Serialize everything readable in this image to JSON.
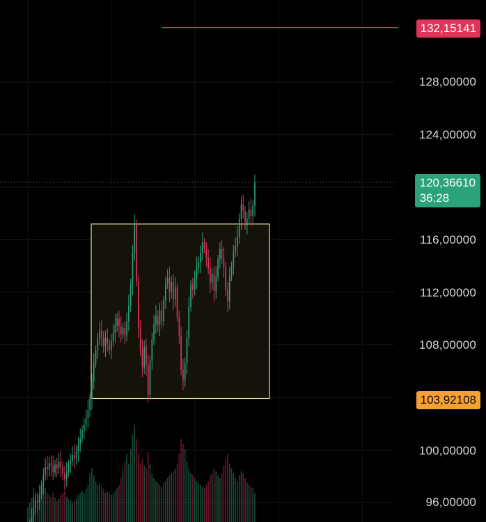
{
  "chart_data": {
    "type": "candlestick",
    "y_axis": {
      "ticks": [
        "128,00000",
        "124,00000",
        "116,00000",
        "112,00000",
        "108,00000",
        "100,00000",
        "96,00000"
      ],
      "tick_values": [
        128,
        124,
        116,
        112,
        108,
        100,
        96
      ],
      "position": "right"
    },
    "tags": {
      "resistance": "132,15141",
      "current_price": "120,36610",
      "countdown": "36:28",
      "support": "103,92108"
    },
    "levels": {
      "resistance": 132.15141,
      "current_price": 120.3661,
      "support": 103.92108
    },
    "range_box": {
      "low": 103.92108,
      "high": 117.2
    },
    "closes": [
      93.5,
      94.2,
      94.9,
      95.6,
      96.2,
      96.0,
      96.6,
      97.3,
      98.1,
      98.7,
      98.5,
      99.0,
      98.8,
      98.3,
      98.9,
      98.6,
      99.1,
      98.7,
      98.2,
      97.8,
      98.3,
      98.9,
      99.2,
      99.6,
      99.4,
      99.9,
      100.4,
      100.9,
      101.5,
      101.9,
      102.4,
      103.0,
      103.9,
      105.2,
      106.6,
      107.6,
      108.4,
      109.1,
      108.6,
      107.9,
      108.5,
      108.1,
      107.6,
      108.3,
      108.9,
      109.5,
      110.0,
      109.4,
      108.8,
      109.3,
      108.7,
      109.8,
      111.0,
      112.6,
      115.0,
      117.2,
      112.8,
      109.2,
      107.6,
      106.3,
      107.9,
      106.5,
      104.2,
      106.8,
      108.4,
      109.6,
      110.2,
      109.5,
      110.6,
      109.8,
      111.4,
      112.7,
      113.1,
      112.0,
      112.8,
      111.5,
      112.4,
      110.1,
      108.7,
      106.1,
      105.3,
      106.6,
      108.5,
      110.9,
      112.6,
      112.2,
      113.0,
      113.9,
      114.3,
      115.0,
      115.8,
      115.3,
      114.6,
      113.8,
      112.7,
      113.4,
      112.1,
      113.2,
      114.5,
      115.3,
      114.6,
      113.9,
      112.2,
      111.3,
      113.2,
      114.0,
      115.1,
      115.5,
      116.2,
      117.6,
      118.7,
      118.2,
      117.1,
      117.6,
      118.3,
      117.8,
      118.6,
      120.3661
    ],
    "volumes": [
      0.15,
      0.2,
      0.25,
      0.35,
      0.3,
      0.28,
      0.25,
      0.3,
      0.42,
      0.35,
      0.3,
      0.28,
      0.26,
      0.3,
      0.25,
      0.22,
      0.24,
      0.28,
      0.3,
      0.32,
      0.26,
      0.24,
      0.22,
      0.2,
      0.22,
      0.24,
      0.28,
      0.3,
      0.32,
      0.3,
      0.34,
      0.38,
      0.5,
      0.55,
      0.48,
      0.42,
      0.38,
      0.4,
      0.36,
      0.34,
      0.3,
      0.32,
      0.3,
      0.28,
      0.3,
      0.32,
      0.35,
      0.38,
      0.45,
      0.55,
      0.62,
      0.7,
      0.6,
      0.75,
      0.9,
      1.0,
      0.85,
      0.7,
      0.6,
      0.65,
      0.58,
      0.55,
      0.72,
      0.6,
      0.5,
      0.45,
      0.42,
      0.4,
      0.38,
      0.36,
      0.4,
      0.42,
      0.45,
      0.48,
      0.5,
      0.52,
      0.55,
      0.6,
      0.7,
      0.85,
      0.8,
      0.75,
      0.62,
      0.55,
      0.5,
      0.48,
      0.45,
      0.42,
      0.4,
      0.38,
      0.36,
      0.35,
      0.38,
      0.42,
      0.48,
      0.5,
      0.55,
      0.52,
      0.48,
      0.45,
      0.5,
      0.58,
      0.65,
      0.7,
      0.6,
      0.55,
      0.5,
      0.45,
      0.42,
      0.48,
      0.52,
      0.5,
      0.45,
      0.4,
      0.38,
      0.36,
      0.35,
      0.3
    ],
    "colors": {
      "up": "#2aa37a",
      "down": "#e0345a",
      "grid": "#1a1a1a",
      "box_stroke": "#e8dca0",
      "box_fill": "#15120a",
      "resistance": "#e0345a",
      "support": "#f5a034",
      "current": "#2aa37a"
    },
    "grid": true
  }
}
